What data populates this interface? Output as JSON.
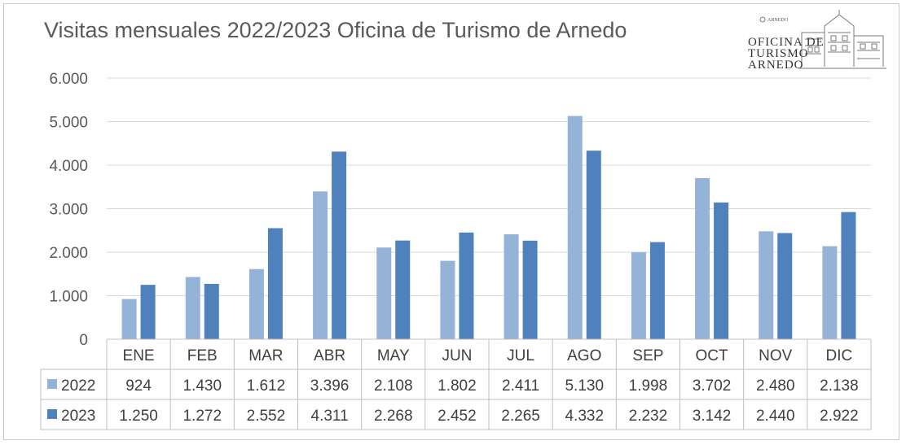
{
  "chart_data": {
    "type": "bar",
    "title": "Visitas mensuales 2022/2023 Oficina de Turismo de Arnedo",
    "categories": [
      "ENE",
      "FEB",
      "MAR",
      "ABR",
      "MAY",
      "JUN",
      "JUL",
      "AGO",
      "SEP",
      "OCT",
      "NOV",
      "DIC"
    ],
    "series": [
      {
        "name": "2022",
        "color": "#95b3d7",
        "values": [
          924,
          1430,
          1612,
          3396,
          2108,
          1802,
          2411,
          5130,
          1998,
          3702,
          2480,
          2138
        ],
        "labels": [
          "924",
          "1.430",
          "1.612",
          "3.396",
          "2.108",
          "1.802",
          "2.411",
          "5.130",
          "1.998",
          "3.702",
          "2.480",
          "2.138"
        ]
      },
      {
        "name": "2023",
        "color": "#4f81bd",
        "values": [
          1250,
          1272,
          2552,
          4311,
          2268,
          2452,
          2265,
          4332,
          2232,
          3142,
          2440,
          2922
        ],
        "labels": [
          "1.250",
          "1.272",
          "2.552",
          "4.311",
          "2.268",
          "2.452",
          "2.265",
          "4.332",
          "2.232",
          "3.142",
          "2.440",
          "2.922"
        ]
      }
    ],
    "ylim": [
      0,
      6000
    ],
    "yticks": [
      0,
      1000,
      2000,
      3000,
      4000,
      5000,
      6000
    ],
    "ytick_labels": [
      "0",
      "1.000",
      "2.000",
      "3.000",
      "4.000",
      "5.000",
      "6.000"
    ],
    "grid": true,
    "legend": "data-table"
  },
  "logo": {
    "text_lines": [
      "OFICINA DE",
      "TURISMO",
      "ARNEDO"
    ],
    "small_text": "ARNEDO"
  }
}
